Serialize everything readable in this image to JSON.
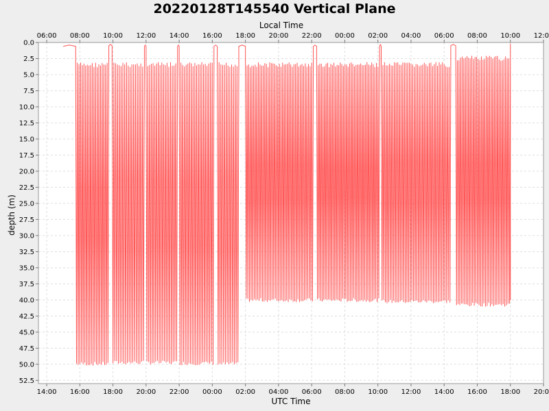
{
  "chart_data": {
    "type": "line",
    "title": "20220128T145540 Vertical Plane",
    "xlabel_bottom": "UTC Time",
    "xlabel_top": "Local Time",
    "ylabel": "depth (m)",
    "y_inverted": true,
    "ylim": [
      0.0,
      53.0
    ],
    "y_ticks": [
      "0.0",
      "2.5",
      "5.0",
      "7.5",
      "10.0",
      "12.5",
      "15.0",
      "17.5",
      "20.0",
      "22.5",
      "25.0",
      "27.5",
      "30.0",
      "32.5",
      "35.0",
      "37.5",
      "40.0",
      "42.5",
      "45.0",
      "47.5",
      "50.0",
      "52.5"
    ],
    "xlim_hours": [
      13.5,
      44.0
    ],
    "x_ticks_bottom": [
      "14:00",
      "16:00",
      "18:00",
      "20:00",
      "22:00",
      "00:00",
      "02:00",
      "04:00",
      "06:00",
      "08:00",
      "10:00",
      "12:00",
      "14:00",
      "16:00",
      "18:00",
      "20:00"
    ],
    "x_ticks_top": [
      "06:00",
      "08:00",
      "10:00",
      "12:00",
      "14:00",
      "16:00",
      "18:00",
      "20:00",
      "22:00",
      "00:00",
      "02:00",
      "04:00",
      "06:00",
      "08:00",
      "10:00",
      "12:00"
    ],
    "grid": true,
    "series": [
      {
        "color": "#ff5555",
        "segments": [
          {
            "start_hour": 15.0,
            "end_hour": 15.75,
            "type": "surface",
            "min_depth": 0.4,
            "max_depth": 0.6
          },
          {
            "start_hour": 15.75,
            "end_hour": 17.75,
            "type": "dives",
            "n_dives": 20,
            "min_depth": 3.5,
            "max_depth": 50.2
          },
          {
            "start_hour": 17.75,
            "end_hour": 17.95,
            "type": "surface",
            "min_depth": 0.3,
            "max_depth": 0.5
          },
          {
            "start_hour": 17.95,
            "end_hour": 19.9,
            "type": "dives",
            "n_dives": 18,
            "min_depth": 3.5,
            "max_depth": 50.0
          },
          {
            "start_hour": 19.9,
            "end_hour": 20.0,
            "type": "surface",
            "min_depth": 0.4,
            "max_depth": 0.6
          },
          {
            "start_hour": 20.0,
            "end_hour": 21.9,
            "type": "dives",
            "n_dives": 18,
            "min_depth": 3.5,
            "max_depth": 50.0
          },
          {
            "start_hour": 21.9,
            "end_hour": 22.0,
            "type": "surface",
            "min_depth": 0.4,
            "max_depth": 0.6
          },
          {
            "start_hour": 22.0,
            "end_hour": 24.1,
            "type": "dives",
            "n_dives": 20,
            "min_depth": 3.5,
            "max_depth": 50.1
          },
          {
            "start_hour": 24.1,
            "end_hour": 24.3,
            "type": "surface",
            "min_depth": 0.4,
            "max_depth": 0.6
          },
          {
            "start_hour": 24.3,
            "end_hour": 25.6,
            "type": "dives",
            "n_dives": 12,
            "min_depth": 3.5,
            "max_depth": 50.2
          },
          {
            "start_hour": 25.6,
            "end_hour": 26.0,
            "type": "surface",
            "min_depth": 0.4,
            "max_depth": 0.6
          },
          {
            "start_hour": 26.0,
            "end_hour": 30.1,
            "type": "dives",
            "n_dives": 42,
            "min_depth": 3.5,
            "max_depth": 40.3
          },
          {
            "start_hour": 30.1,
            "end_hour": 30.3,
            "type": "surface",
            "min_depth": 0.4,
            "max_depth": 0.6
          },
          {
            "start_hour": 30.3,
            "end_hour": 34.1,
            "type": "dives",
            "n_dives": 40,
            "min_depth": 3.5,
            "max_depth": 40.3
          },
          {
            "start_hour": 34.1,
            "end_hour": 34.2,
            "type": "surface",
            "min_depth": 0.3,
            "max_depth": 0.6
          },
          {
            "start_hour": 34.2,
            "end_hour": 38.4,
            "type": "dives",
            "n_dives": 42,
            "min_depth": 3.5,
            "max_depth": 40.5
          },
          {
            "start_hour": 38.4,
            "end_hour": 38.7,
            "type": "surface",
            "min_depth": 0.3,
            "max_depth": 0.5
          },
          {
            "start_hour": 38.7,
            "end_hour": 42.0,
            "type": "dives",
            "n_dives": 34,
            "min_depth": 2.5,
            "max_depth": 41.0
          },
          {
            "start_hour": 42.0,
            "end_hour": 42.0,
            "type": "ascent",
            "min_depth": 0.2,
            "max_depth": 40.0
          }
        ]
      }
    ]
  }
}
